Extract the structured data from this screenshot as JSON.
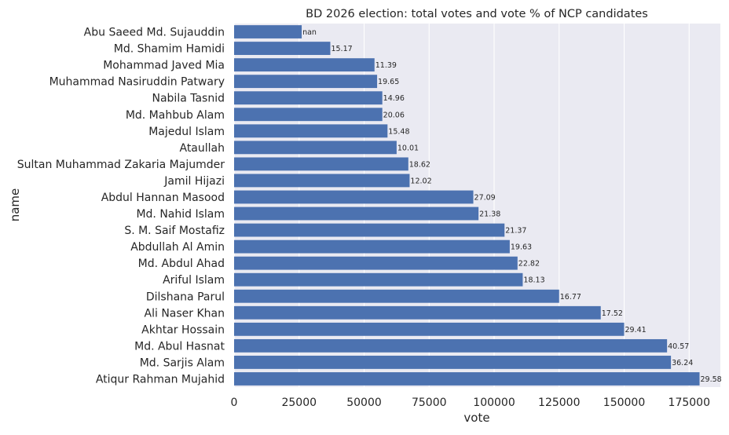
{
  "chart_data": {
    "type": "bar",
    "orientation": "horizontal",
    "title": "BD 2026 election: total votes and vote % of NCP candidates",
    "xlabel": "vote",
    "ylabel": "name",
    "xlim": [
      0,
      187000
    ],
    "x_ticks": [
      "0",
      "25000",
      "50000",
      "75000",
      "100000",
      "125000",
      "150000",
      "175000"
    ],
    "grid": true,
    "colors": {
      "bar": "#4c72b0",
      "plot_bg": "#eaeaf2",
      "grid": "#ffffff"
    },
    "categories": [
      "Abu Saeed Md. Sujauddin",
      "Md. Shamim Hamidi",
      "Mohammad Javed Mia",
      "Muhammad Nasiruddin Patwary",
      "Nabila Tasnid",
      "Md. Mahbub Alam",
      "Majedul Islam",
      "Ataullah",
      "Sultan Muhammad Zakaria Majumder",
      "Jamil Hijazi",
      "Abdul Hannan Masood",
      "Md. Nahid Islam",
      "S. M. Saif Mostafiz",
      "Abdullah Al Amin",
      "Md. Abdul Ahad",
      "Ariful Islam",
      "Dilshana Parul",
      "Ali Naser Khan",
      "Akhtar Hossain",
      "Md. Abul Hasnat",
      "Md. Sarjis Alam",
      "Atiqur Rahman Mujahid"
    ],
    "values": [
      26000,
      37000,
      54000,
      55000,
      57000,
      57000,
      59000,
      62500,
      67000,
      67500,
      92000,
      94000,
      104000,
      106000,
      109000,
      111000,
      125000,
      141000,
      150000,
      166500,
      168000,
      179000
    ],
    "data_labels": [
      "nan",
      "15.17",
      "11.39",
      "19.65",
      "14.96",
      "20.06",
      "15.48",
      "10.01",
      "18.62",
      "12.02",
      "27.09",
      "21.38",
      "21.37",
      "19.63",
      "22.82",
      "18.13",
      "16.77",
      "17.52",
      "29.41",
      "40.57",
      "36.24",
      "29.58"
    ]
  }
}
